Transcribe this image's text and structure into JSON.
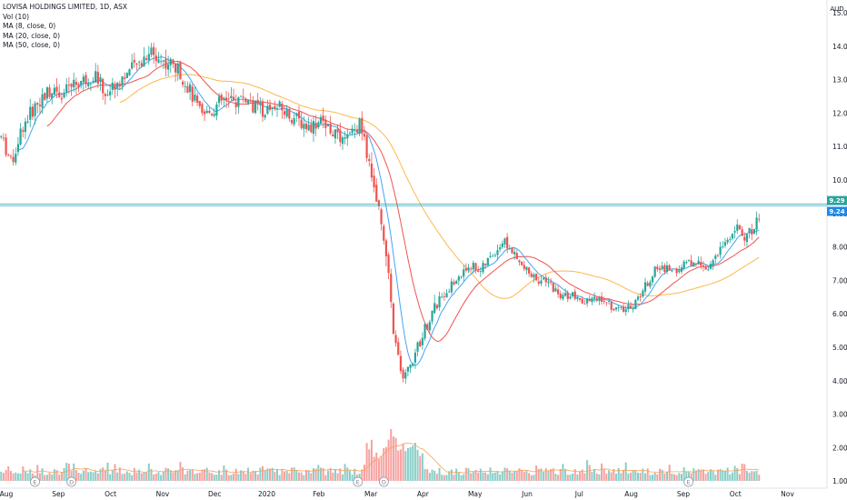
{
  "header": {
    "title": "LOVISA HOLDINGS LIMITED, 1D, ASX",
    "indicators": [
      "Vol (10)",
      "MA (8, close, 0)",
      "MA (20, close, 0)",
      "MA (50, close, 0)"
    ]
  },
  "chart_data": {
    "type": "candlestick",
    "currency": "AUD",
    "yticks": [
      "15.00",
      "14.00",
      "13.00",
      "12.00",
      "11.00",
      "10.00",
      "9.00",
      "8.00",
      "7.00",
      "6.00",
      "5.00",
      "4.00",
      "3.00",
      "2.00",
      "1.00"
    ],
    "ylim": [
      1.0,
      15.3
    ],
    "xticks": [
      "Aug",
      "Sep",
      "Oct",
      "Nov",
      "Dec",
      "2020",
      "Feb",
      "Mar",
      "Apr",
      "May",
      "Jun",
      "Jul",
      "Aug",
      "Sep",
      "Oct",
      "Nov"
    ],
    "last_price_labels": [
      "9.29",
      "9.24"
    ],
    "last_price_values": [
      9.29,
      9.24
    ],
    "events": [
      {
        "label": "E",
        "month_index": 0.55
      },
      {
        "label": "D",
        "month_index": 1.25
      },
      {
        "label": "E",
        "month_index": 6.75
      },
      {
        "label": "D",
        "month_index": 7.25
      },
      {
        "label": "E",
        "month_index": 13.1
      }
    ],
    "price_anchors": [
      [
        -0.1,
        11.3
      ],
      [
        0.1,
        10.5
      ],
      [
        0.3,
        11.6
      ],
      [
        0.5,
        12.1
      ],
      [
        0.7,
        12.5
      ],
      [
        0.9,
        12.8
      ],
      [
        1.1,
        12.6
      ],
      [
        1.3,
        12.9
      ],
      [
        1.5,
        13.0
      ],
      [
        1.7,
        13.2
      ],
      [
        1.9,
        12.6
      ],
      [
        2.1,
        12.9
      ],
      [
        2.3,
        13.2
      ],
      [
        2.5,
        13.4
      ],
      [
        2.75,
        13.9
      ],
      [
        2.95,
        13.6
      ],
      [
        3.15,
        13.5
      ],
      [
        3.35,
        13.2
      ],
      [
        3.55,
        12.6
      ],
      [
        3.75,
        11.9
      ],
      [
        3.95,
        12.1
      ],
      [
        4.15,
        12.4
      ],
      [
        4.35,
        12.3
      ],
      [
        4.55,
        12.5
      ],
      [
        4.75,
        12.2
      ],
      [
        4.95,
        12.1
      ],
      [
        5.2,
        12.2
      ],
      [
        5.5,
        11.9
      ],
      [
        5.8,
        11.6
      ],
      [
        6.05,
        11.8
      ],
      [
        6.25,
        11.5
      ],
      [
        6.45,
        11.1
      ],
      [
        6.65,
        11.4
      ],
      [
        6.8,
        11.7
      ],
      [
        6.95,
        10.6
      ],
      [
        7.1,
        9.6
      ],
      [
        7.25,
        8.4
      ],
      [
        7.45,
        5.3
      ],
      [
        7.6,
        4.0
      ],
      [
        7.75,
        4.4
      ],
      [
        7.9,
        5.0
      ],
      [
        8.1,
        5.8
      ],
      [
        8.3,
        6.4
      ],
      [
        8.5,
        6.8
      ],
      [
        8.7,
        7.1
      ],
      [
        8.9,
        7.5
      ],
      [
        9.1,
        7.3
      ],
      [
        9.35,
        7.8
      ],
      [
        9.55,
        8.2
      ],
      [
        9.7,
        7.9
      ],
      [
        9.85,
        7.5
      ],
      [
        10.05,
        7.2
      ],
      [
        10.25,
        7.0
      ],
      [
        10.45,
        6.9
      ],
      [
        10.65,
        6.5
      ],
      [
        10.85,
        6.6
      ],
      [
        11.05,
        6.3
      ],
      [
        11.25,
        6.4
      ],
      [
        11.45,
        6.5
      ],
      [
        11.65,
        6.2
      ],
      [
        11.85,
        6.1
      ],
      [
        12.05,
        6.3
      ],
      [
        12.25,
        6.8
      ],
      [
        12.45,
        7.3
      ],
      [
        12.65,
        7.4
      ],
      [
        12.85,
        7.3
      ],
      [
        13.05,
        7.5
      ],
      [
        13.25,
        7.6
      ],
      [
        13.45,
        7.4
      ],
      [
        13.65,
        7.7
      ],
      [
        13.85,
        8.3
      ],
      [
        14.05,
        8.6
      ],
      [
        14.2,
        8.3
      ],
      [
        14.35,
        8.6
      ],
      [
        14.5,
        9.1
      ]
    ],
    "volume_scale_max": 3.0
  }
}
